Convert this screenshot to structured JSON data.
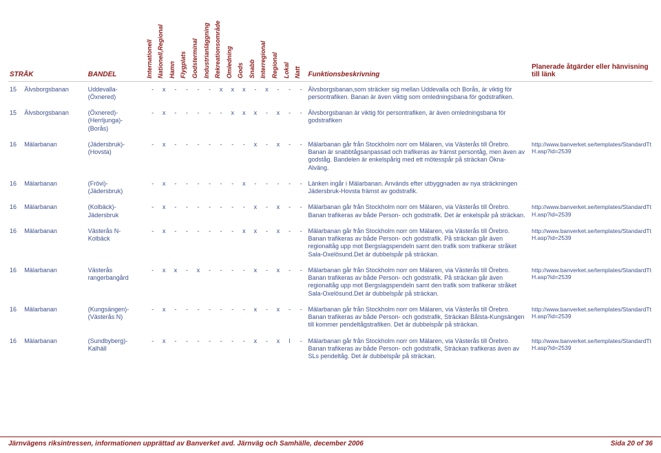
{
  "headers": {
    "strak": "STRÅK",
    "bandel": "BANDEL",
    "flags": [
      "Internationell",
      "Nationell,Regional",
      "Hamn",
      "Flygplats",
      "Godsterminal",
      "Industrianläggning",
      "Rekreationsområde",
      "Omledning",
      "Gods",
      "Snabb",
      "Interregional",
      "Regional",
      "Lokal",
      "Natt"
    ],
    "desc": "Funktionsbeskrivning",
    "link": "Planerade åtgärder eller hänvisning till länk"
  },
  "rows": [
    {
      "num": "15",
      "strak": "Älvsborgsbanan",
      "bandel": "Uddevalla-\n(Öxnered)",
      "flags": [
        "-",
        "x",
        "-",
        "-",
        "-",
        "-",
        "x",
        "x",
        "x",
        "-",
        "x",
        "-",
        "-",
        "-"
      ],
      "desc": "Älvsborgsbanan,som sträcker sig mellan Uddevalla och Borås, är viktig för persontrafiken. Banan är även viktig som omledningsbana för godstrafiken.",
      "link": ""
    },
    {
      "num": "15",
      "strak": "Älvsborgsbanan",
      "bandel": "(Öxnered)-\n(Herrljunga)-\n(Borås)",
      "flags": [
        "-",
        "x",
        "-",
        "-",
        "-",
        "-",
        "-",
        "x",
        "x",
        "x",
        "-",
        "x",
        "-",
        "-"
      ],
      "desc": "Älvsborgsbanan är viktig för persontrafiken, är även omledningsbana för godstrafiken",
      "link": ""
    },
    {
      "num": "16",
      "strak": "Mälarbanan",
      "bandel": "(Jädersbruk)-\n(Hovsta)",
      "flags": [
        "-",
        "x",
        "-",
        "-",
        "-",
        "-",
        "-",
        "-",
        "-",
        "x",
        "-",
        "x",
        "-",
        "-"
      ],
      "desc": "Mälarbanan går från Stockholm norr om Mälaren, via Västerås till Örebro. Banan är snabbtågsanpassad och trafikeras av främst persontåg, men även av godståg. Bandelen är enkelspårig med ett mötesspår på sträckan Ökna-Alväng.",
      "link": "http://www.banverket.se/templates/StandardTtH.asp?id=2539"
    },
    {
      "num": "16",
      "strak": "Mälarbanan",
      "bandel": "(Frövi)-\n(Jädersbruk)",
      "flags": [
        "-",
        "x",
        "-",
        "-",
        "-",
        "-",
        "-",
        "-",
        "x",
        "-",
        "-",
        "-",
        "-",
        "-"
      ],
      "desc": "Länken ingår i Mälarbanan. Används efter utbyggnaden av nya sträckningen Jädersbruk-Hovsta främst av godstrafik.",
      "link": ""
    },
    {
      "num": "16",
      "strak": "Mälarbanan",
      "bandel": "(Kolbäck)-\nJädersbruk",
      "flags": [
        "-",
        "x",
        "-",
        "-",
        "-",
        "-",
        "-",
        "-",
        "-",
        "x",
        "-",
        "x",
        "-",
        "-"
      ],
      "desc": "Mälarbanan går från Stockholm norr om Mälaren, via Västerås till Örebro. Banan trafikeras av både Person- och godstrafik. Det är enkelspår på sträckan.",
      "link": "http://www.banverket.se/templates/StandardTtH.asp?id=2539"
    },
    {
      "num": "16",
      "strak": "Mälarbanan",
      "bandel": "Västerås N-\nKolbäck",
      "flags": [
        "-",
        "x",
        "-",
        "-",
        "-",
        "-",
        "-",
        "-",
        "x",
        "x",
        "-",
        "x",
        "-",
        "-"
      ],
      "desc": "Mälarbanan går från Stockholm norr om Mälaren, via Västerås till Örebro. Banan trafikeras av både Person- och godstrafik. På sträckan går även regionaltåg upp mot Bergslagspendeln samt den trafik som trafikerar stråket Sala-Oxelösund.Det är dubbelspår på sträckan.",
      "link": "http://www.banverket.se/templates/StandardTtH.asp?id=2539"
    },
    {
      "num": "16",
      "strak": "Mälarbanan",
      "bandel": "Västerås\nrangerbangård",
      "flags": [
        "-",
        "x",
        "x",
        "-",
        "x",
        "-",
        "-",
        "-",
        "-",
        "x",
        "-",
        "x",
        "-",
        "-"
      ],
      "desc": "Mälarbanan går från Stockholm norr om Mälaren, via Västerås till Örebro. Banan trafikeras av både Person- och godstrafik. På sträckan går även regionaltåg upp mot Bergslagspendeln samt den trafik som trafikerar stråket Sala-Oxelösund.Det är dubbelspår på sträckan.",
      "link": "http://www.banverket.se/templates/StandardTtH.asp?id=2539"
    },
    {
      "num": "16",
      "strak": "Mälarbanan",
      "bandel": "(Kungsängen)-\n(Västerås N)",
      "flags": [
        "-",
        "x",
        "-",
        "-",
        "-",
        "-",
        "-",
        "-",
        "-",
        "x",
        "-",
        "x",
        "-",
        "-"
      ],
      "desc": "Mälarbanan går från Stockholm norr om Mälaren, via Västerås till Örebro. Banan trafikeras av både Person- och godstrafik, Sträckan Bålsta-Kungsängen till kommer pendeltågstrafiken. Det är dubbelspår på sträckan.",
      "link": "http://www.banverket.se/templates/StandardTtH.asp?id=2539"
    },
    {
      "num": "16",
      "strak": "Mälarbanan",
      "bandel": "(Sundbyberg)-\nKalhäll",
      "flags": [
        "-",
        "x",
        "-",
        "-",
        "-",
        "-",
        "-",
        "-",
        "-",
        "x",
        "-",
        "x",
        "l",
        "-"
      ],
      "desc": "Mälarbanan går från Stockholm norr om Mälaren, via Västerås till Örebro. Banan trafikeras av både Person- och godstrafik, Sträckan trafikeras även av SLs pendeltåg. Det är dubbelspår på sträckan.",
      "link": "http://www.banverket.se/templates/StandardTtH.asp?id=2539"
    }
  ],
  "footer": {
    "left": "Järnvägens riksintressen, informationen upprättad av Banverket avd. Järnväg och Samhälle, december 2006",
    "right": "Sida 20 of 36"
  }
}
